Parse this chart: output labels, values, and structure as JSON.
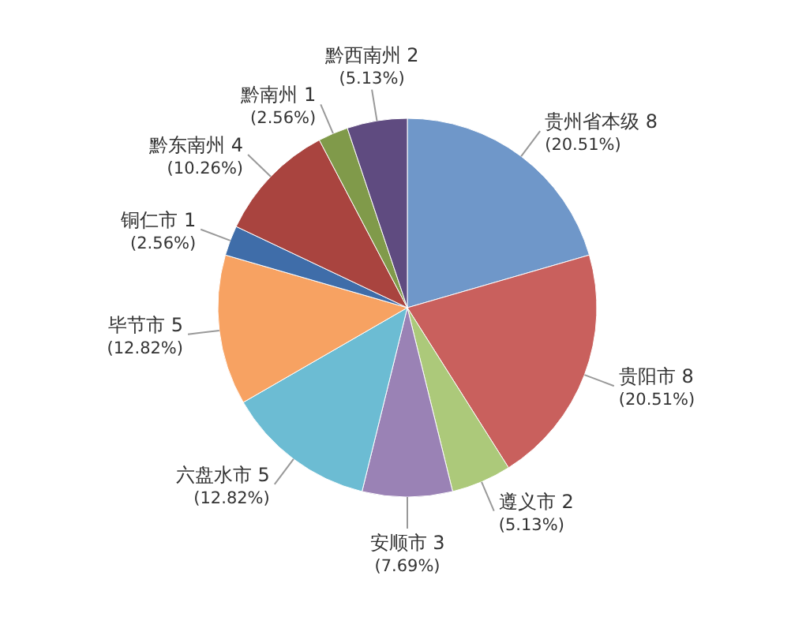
{
  "chart_data": {
    "type": "pie",
    "categories": [
      "贵州省本级",
      "贵阳市",
      "遵义市",
      "安顺市",
      "六盘水市",
      "毕节市",
      "铜仁市",
      "黔东南州",
      "黔南州",
      "黔西南州"
    ],
    "values": [
      8,
      8,
      2,
      3,
      5,
      5,
      1,
      4,
      1,
      2
    ],
    "value_labels": [
      "8\n(20.51%)",
      "8\n(20.51%)",
      "2\n(5.13%)",
      "3\n(7.69%)",
      "5\n(12.82%)",
      "5\n(12.82%)",
      "1\n(2.56%)",
      "4\n(10.26%)",
      "1\n(2.56%)",
      "2\n(5.13%)"
    ],
    "colors": [
      "#6f97c9",
      "#c9605d",
      "#acc97a",
      "#9a82b5",
      "#6cbcd3",
      "#f7a262",
      "#3f6da9",
      "#a9443f",
      "#809a4a",
      "#5f4b80"
    ]
  }
}
